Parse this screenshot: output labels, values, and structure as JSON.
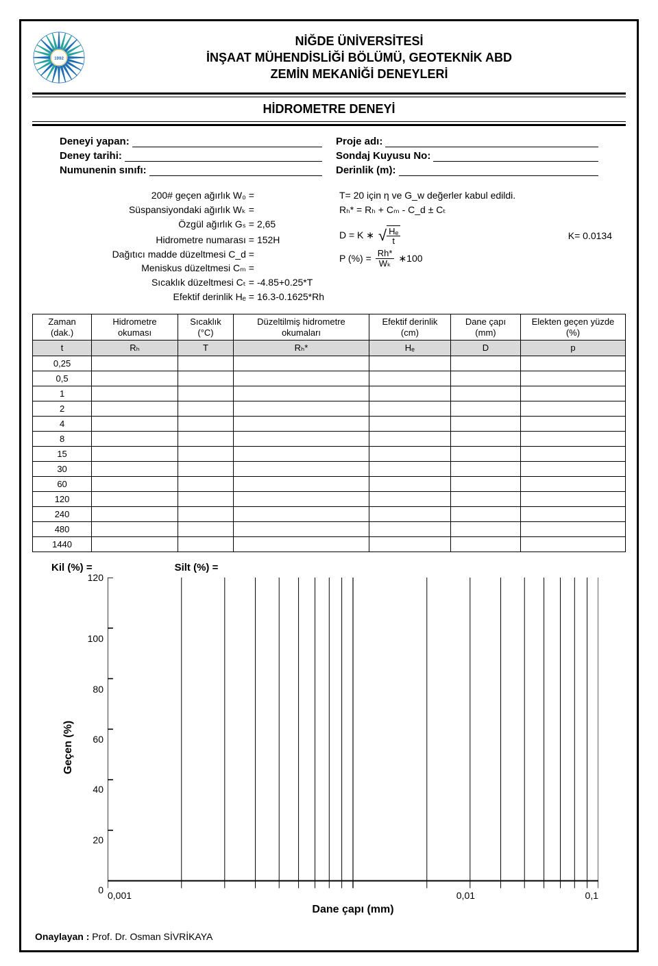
{
  "colors": {
    "border": "#000000",
    "bg": "#ffffff",
    "header_row": "#d9d9d9",
    "logo_blue": "#1f6fb5",
    "logo_teal": "#2aa3a0",
    "logo_gold": "#d4a13a"
  },
  "header": {
    "line1": "NİĞDE ÜNİVERSİTESİ",
    "line2": "İNŞAAT MÜHENDİSLİĞİ BÖLÜMÜ, GEOTEKNİK ABD",
    "line3": "ZEMİN MEKANİĞİ DENEYLERİ"
  },
  "section_title": "HİDROMETRE DENEYİ",
  "meta_left": [
    "Deneyi yapan:",
    "Deney tarihi:",
    "Numunenin sınıfı:"
  ],
  "meta_right": [
    "Proje adı:",
    "Sondaj Kuyusu No:",
    "Derinlik (m):"
  ],
  "params_left": [
    {
      "label": "200# geçen ağırlık W₀ =",
      "val": ""
    },
    {
      "label": "Süspansiyondaki ağırlık Wₖ =",
      "val": ""
    },
    {
      "label": "Özgül ağırlık Gₛ =",
      "val": "2,65"
    },
    {
      "label": "",
      "val": ""
    },
    {
      "label": "Hidrometre numarası =",
      "val": "152H"
    },
    {
      "label": "Dağıtıcı madde düzeltmesi C_d =",
      "val": ""
    },
    {
      "label": "Meniskus düzeltmesi Cₘ =",
      "val": ""
    },
    {
      "label": "Sıcaklık düzeltmesi Cₜ =",
      "val": "-4.85+0.25*T"
    },
    {
      "label": "Efektif derinlik Hₑ =",
      "val": "16.3-0.1625*Rh"
    }
  ],
  "params_right": {
    "line1": "T= 20 için η ve G_w değerler kabul edildi.",
    "line2": "Rₕ* = Rₕ + Cₘ - C_d ± Cₜ",
    "k_label": "K= 0.0134",
    "d_eq_left": "D = K ∗",
    "d_frac_num": "Hₑ",
    "d_frac_den": "t",
    "p_eq_left": "P (%) =",
    "p_frac_num": "Rh*",
    "p_frac_den": "Wₖ",
    "p_eq_right": "∗100"
  },
  "table": {
    "head1": [
      "Zaman (dak.)",
      "Hidrometre okuması",
      "Sıcaklık (°C)",
      "Düzeltilmiş hidrometre okumaları",
      "Efektif derinlik (cm)",
      "Dane çapı (mm)",
      "Elekten geçen yüzde (%)"
    ],
    "symbols": [
      "t",
      "Rₕ",
      "T",
      "Rₕ*",
      "Hₑ",
      "D",
      "p"
    ],
    "times": [
      "0,25",
      "0,5",
      "1",
      "2",
      "4",
      "8",
      "15",
      "30",
      "60",
      "120",
      "240",
      "480",
      "1440"
    ]
  },
  "results": {
    "kil": "Kil  (%) =",
    "silt": "Silt  (%) ="
  },
  "chart": {
    "ylabel": "Geçen   (%)",
    "xlabel": "Dane çapı   (mm)",
    "ymin": 0,
    "ymax": 120,
    "ystep": 20,
    "yticks": [
      "0",
      "20",
      "40",
      "60",
      "80",
      "100",
      "120"
    ],
    "xticks": [
      "0,001",
      "0,01",
      "0,1"
    ],
    "grid_color": "#000000",
    "axis_width": 1.5,
    "tick_len": 8,
    "decades": 2,
    "minor_per_decade": [
      2,
      3,
      4,
      5,
      6,
      7,
      8,
      9
    ]
  },
  "footer": {
    "label": "Onaylayan :",
    "name": "Prof. Dr. Osman SİVRİKAYA"
  }
}
